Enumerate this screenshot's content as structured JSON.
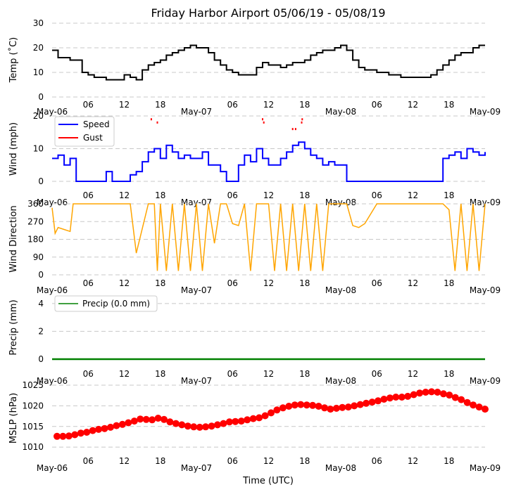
{
  "title": "Friday Harbor Airport 05/06/19 - 05/08/19",
  "xlabel": "Time (UTC)",
  "x_ticks": [
    "May-06",
    "06",
    "12",
    "18",
    "May-07",
    "06",
    "12",
    "18",
    "May-08",
    "06",
    "12",
    "18",
    "May-09"
  ],
  "x_range_hours": [
    0,
    72
  ],
  "colors": {
    "temp": "#000000",
    "speed": "#0000ff",
    "gust": "#ff0000",
    "direction": "#ffa500",
    "precip": "#008000",
    "mslp": "#ff0000"
  },
  "chart_data": [
    {
      "type": "line",
      "name": "temperature",
      "ylabel": "Temp (˚C)",
      "ylim": [
        0,
        30
      ],
      "yticks": [
        "0",
        "10",
        "20",
        "30"
      ],
      "x_hours": [
        0,
        1,
        3,
        5,
        6,
        7,
        8,
        9,
        10,
        12,
        13,
        14,
        15,
        16,
        17,
        18,
        19,
        20,
        21,
        22,
        23,
        24,
        25,
        26,
        27,
        28,
        29,
        30,
        31,
        33,
        34,
        35,
        36,
        37,
        38,
        39,
        40,
        41,
        42,
        43,
        44,
        45,
        46,
        47,
        48,
        49,
        50,
        51,
        52,
        54,
        56,
        58,
        60,
        61,
        62,
        63,
        64,
        65,
        66,
        67,
        68,
        69,
        70,
        71,
        72
      ],
      "values": [
        19,
        16,
        15,
        10,
        9,
        8,
        8,
        7,
        7,
        9,
        8,
        7,
        11,
        13,
        14,
        15,
        17,
        18,
        19,
        20,
        21,
        20,
        20,
        18,
        15,
        13,
        11,
        10,
        9,
        9,
        12,
        14,
        13,
        13,
        12,
        13,
        14,
        14,
        15,
        17,
        18,
        19,
        19,
        20,
        21,
        19,
        15,
        12,
        11,
        10,
        9,
        8,
        8,
        8,
        8,
        9,
        11,
        13,
        15,
        17,
        18,
        18,
        20,
        21,
        21
      ]
    },
    {
      "type": "line",
      "name": "wind",
      "ylabel": "Wind (mph)",
      "ylim": [
        0,
        20
      ],
      "yticks": [
        "0",
        "10",
        "20"
      ],
      "legend": [
        "Speed",
        "Gust"
      ],
      "speed_x_hours": [
        0,
        1,
        2,
        3,
        4,
        5,
        6,
        8,
        9,
        10,
        11,
        12,
        13,
        14,
        15,
        16,
        17,
        18,
        19,
        20,
        21,
        22,
        23,
        24,
        25,
        26,
        27,
        28,
        29,
        30,
        31,
        32,
        33,
        34,
        35,
        36,
        37,
        38,
        39,
        40,
        41,
        42,
        43,
        44,
        45,
        46,
        47,
        48,
        49,
        50,
        51,
        52,
        53,
        54,
        55,
        56,
        57,
        58,
        59,
        60,
        61,
        62,
        63,
        64,
        65,
        66,
        67,
        68,
        69,
        70,
        71,
        72
      ],
      "speed_values": [
        7,
        8,
        5,
        7,
        0,
        0,
        0,
        0,
        3,
        0,
        0,
        0,
        2,
        3,
        6,
        9,
        10,
        7,
        11,
        9,
        7,
        8,
        7,
        7,
        9,
        5,
        5,
        3,
        0,
        0,
        5,
        8,
        6,
        10,
        7,
        5,
        5,
        7,
        9,
        11,
        12,
        10,
        8,
        7,
        5,
        6,
        5,
        5,
        0,
        0,
        0,
        0,
        0,
        0,
        0,
        0,
        0,
        0,
        0,
        0,
        0,
        0,
        0,
        0,
        7,
        8,
        9,
        7,
        10,
        9,
        8,
        9
      ],
      "gust_x_hours": [
        16.5,
        17.5,
        35,
        35.2,
        40,
        40.5,
        41.5,
        41.6
      ],
      "gust_values": [
        19,
        18,
        19,
        18,
        16,
        16,
        18,
        19
      ]
    },
    {
      "type": "line",
      "name": "wind_direction",
      "ylabel": "Wind Direction",
      "ylim": [
        0,
        360
      ],
      "yticks": [
        "0",
        "90",
        "180",
        "270",
        "360"
      ],
      "x_hours": [
        0,
        0.5,
        1,
        2,
        3,
        3.5,
        4,
        6,
        9,
        12,
        13,
        14,
        16,
        17,
        17.5,
        18,
        19,
        20,
        21,
        22,
        23,
        24,
        25,
        26,
        27,
        28,
        29,
        30,
        31,
        32,
        33,
        34,
        35,
        36,
        37,
        38,
        39,
        40,
        41,
        42,
        43,
        44,
        45,
        46,
        47,
        48,
        49,
        50,
        51,
        52,
        54,
        56,
        58,
        60,
        63,
        65,
        66,
        67,
        68,
        69,
        70,
        71,
        72
      ],
      "values": [
        340,
        210,
        240,
        230,
        220,
        360,
        360,
        360,
        360,
        360,
        360,
        110,
        360,
        360,
        20,
        360,
        20,
        360,
        20,
        360,
        20,
        360,
        20,
        360,
        160,
        360,
        360,
        260,
        250,
        360,
        20,
        360,
        360,
        360,
        20,
        360,
        20,
        360,
        20,
        360,
        20,
        360,
        20,
        360,
        360,
        360,
        360,
        250,
        240,
        260,
        360,
        360,
        360,
        360,
        360,
        360,
        330,
        20,
        360,
        20,
        360,
        20,
        360
      ]
    },
    {
      "type": "line",
      "name": "precip",
      "ylabel": "Precip (mm)",
      "ylim": [
        0,
        4.5
      ],
      "yticks": [
        "0",
        "2",
        "4"
      ],
      "legend": [
        "Precip (0.0 mm)"
      ],
      "x_hours": [
        0,
        72
      ],
      "values": [
        0,
        0
      ]
    },
    {
      "type": "scatter",
      "name": "mslp",
      "ylabel": "MSLP (hPa)",
      "ylim": [
        1009,
        1025
      ],
      "yticks": [
        "1010",
        "1015",
        "1020",
        "1025"
      ],
      "x_hours": [
        0,
        1,
        2,
        3,
        4,
        5,
        6,
        7,
        8,
        9,
        10,
        11,
        12,
        13,
        14,
        15,
        16,
        17,
        18,
        19,
        20,
        21,
        22,
        23,
        24,
        25,
        26,
        27,
        28,
        29,
        30,
        31,
        32,
        33,
        34,
        35,
        36,
        37,
        38,
        39,
        40,
        41,
        42,
        43,
        44,
        45,
        46,
        47,
        48,
        49,
        50,
        51,
        52,
        53,
        54,
        55,
        56,
        57,
        58,
        59,
        60,
        61,
        62,
        63,
        64,
        65,
        66,
        67,
        68,
        69,
        70,
        71,
        72
      ],
      "values": [
        1012.6,
        1012.6,
        1012.7,
        1013.0,
        1013.4,
        1013.6,
        1014.0,
        1014.3,
        1014.5,
        1014.8,
        1015.2,
        1015.5,
        1015.9,
        1016.3,
        1016.8,
        1016.7,
        1016.6,
        1017.0,
        1016.7,
        1016.1,
        1015.7,
        1015.4,
        1015.1,
        1014.9,
        1014.8,
        1014.9,
        1015.1,
        1015.4,
        1015.7,
        1016.1,
        1016.2,
        1016.3,
        1016.6,
        1016.9,
        1017.1,
        1017.6,
        1018.3,
        1019.0,
        1019.5,
        1019.9,
        1020.2,
        1020.3,
        1020.2,
        1020.1,
        1019.9,
        1019.5,
        1019.2,
        1019.4,
        1019.6,
        1019.7,
        1020.0,
        1020.3,
        1020.6,
        1020.9,
        1021.2,
        1021.6,
        1021.9,
        1022.1,
        1022.1,
        1022.3,
        1022.7,
        1023.1,
        1023.3,
        1023.4,
        1023.3,
        1022.9,
        1022.6,
        1022.0,
        1021.5,
        1020.8,
        1020.2,
        1019.7,
        1019.2
      ]
    }
  ]
}
